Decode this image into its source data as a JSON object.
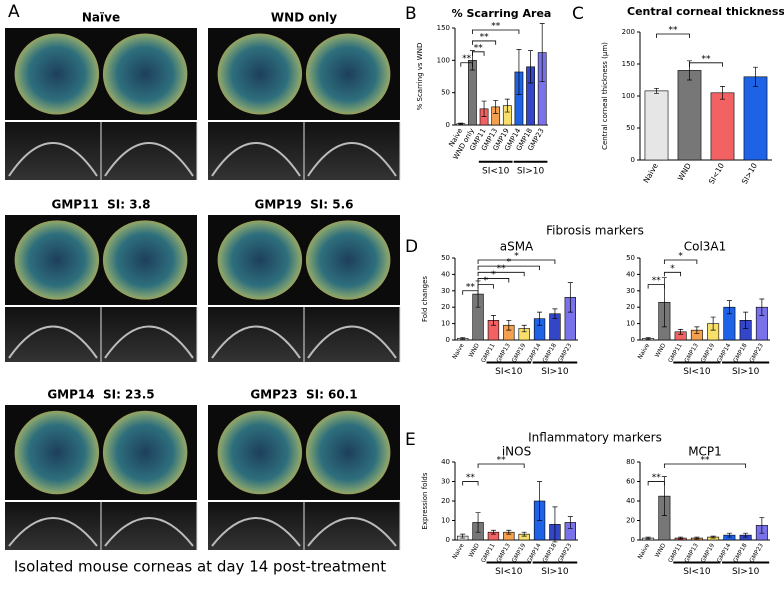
{
  "photos": {
    "panel": "A",
    "images": [
      {
        "label": "Naïve"
      },
      {
        "label": "WND only"
      },
      {
        "label": "GMP11  SI: 3.8"
      },
      {
        "label": "GMP19  SI: 5.6"
      },
      {
        "label": "GMP14  SI: 23.5"
      },
      {
        "label": "GMP23  SI: 60.1"
      }
    ],
    "caption": "Isolated mouse corneas at day 14 post-treatment"
  },
  "group_titles": {
    "D": "Fibrosis markers",
    "E": "Inflammatory markers"
  },
  "chart_data": [
    {
      "type": "bar",
      "panel": "B",
      "title": "% Scarring Area",
      "y_label": "% Scarring vs WND",
      "categories": [
        "Naive",
        "WND only",
        "GMP11",
        "GMP13",
        "GMP19",
        "GMP14",
        "GMP18",
        "GMP23"
      ],
      "values": [
        2,
        100,
        25,
        28,
        30,
        82,
        90,
        112
      ],
      "errors": [
        1,
        15,
        12,
        10,
        10,
        35,
        25,
        45
      ],
      "colors": [
        "#e6e6e6",
        "#777777",
        "#f26262",
        "#f5a04e",
        "#f7df6a",
        "#1e63e6",
        "#3446c8",
        "#7a72ea"
      ],
      "ylim": [
        0,
        150
      ],
      "yticks": [
        0,
        50,
        100,
        150
      ],
      "groups": [
        {
          "label": "SI<10",
          "members": [
            "GMP11",
            "GMP13",
            "GMP19"
          ]
        },
        {
          "label": "SI>10",
          "members": [
            "GMP14",
            "GMP18",
            "GMP23"
          ]
        }
      ],
      "annotations": [
        {
          "text": "**",
          "from": "WND only",
          "to": "GMP14"
        },
        {
          "text": "**",
          "from": "WND only",
          "to": "GMP13"
        },
        {
          "text": "**",
          "from": "WND only",
          "to": "GMP11"
        },
        {
          "text": "**",
          "from": "Naive",
          "to": "WND only"
        }
      ]
    },
    {
      "type": "bar",
      "panel": "C",
      "title": "Central corneal thickness",
      "y_label": "Central corneal thickness (μm)",
      "categories": [
        "Naive",
        "WND",
        "SI<10",
        "SI>10"
      ],
      "values": [
        108,
        140,
        105,
        130
      ],
      "errors": [
        4,
        15,
        10,
        15
      ],
      "colors": [
        "#e6e6e6",
        "#777777",
        "#f26262",
        "#1e63e6"
      ],
      "ylim": [
        0,
        200
      ],
      "yticks": [
        0,
        50,
        100,
        150,
        200
      ],
      "annotations": [
        {
          "text": "**",
          "from": "Naive",
          "to": "WND"
        },
        {
          "text": "**",
          "from": "WND",
          "to": "SI<10"
        }
      ]
    },
    {
      "type": "bar",
      "panel": "D",
      "title": "aSMA",
      "y_label": "Fold changes",
      "categories": [
        "Naive",
        "WND",
        "GMP11",
        "GMP13",
        "GMP19",
        "GMP14",
        "GMP18",
        "GMP23"
      ],
      "values": [
        1,
        28,
        12,
        9,
        7,
        13,
        16,
        26
      ],
      "errors": [
        0.5,
        8,
        3,
        3,
        2,
        4,
        3,
        9
      ],
      "colors": [
        "#e6e6e6",
        "#777777",
        "#f26262",
        "#f5a04e",
        "#f7df6a",
        "#1e63e6",
        "#3446c8",
        "#7a72ea"
      ],
      "ylim": [
        0,
        50
      ],
      "yticks": [
        0,
        10,
        20,
        30,
        40,
        50
      ],
      "groups": [
        {
          "label": "SI<10",
          "members": [
            "GMP11",
            "GMP13",
            "GMP19"
          ]
        },
        {
          "label": "SI>10",
          "members": [
            "GMP14",
            "GMP18",
            "GMP23"
          ]
        }
      ],
      "annotations": [
        {
          "text": "*",
          "from": "WND",
          "to": "GMP18"
        },
        {
          "text": "*",
          "from": "WND",
          "to": "GMP14"
        },
        {
          "text": "**",
          "from": "WND",
          "to": "GMP19"
        },
        {
          "text": "*",
          "from": "WND",
          "to": "GMP13"
        },
        {
          "text": "*",
          "from": "WND",
          "to": "GMP11"
        },
        {
          "text": "**",
          "from": "Naive",
          "to": "WND"
        }
      ]
    },
    {
      "type": "bar",
      "panel": "",
      "title": "Col3A1",
      "categories": [
        "Naive",
        "WND",
        "GMP11",
        "GMP13",
        "GMP19",
        "GMP14",
        "GMP18",
        "GMP23"
      ],
      "values": [
        1,
        23,
        5,
        6,
        10,
        20,
        12,
        20
      ],
      "errors": [
        0.5,
        15,
        1.5,
        2,
        4,
        4,
        5,
        5
      ],
      "colors": [
        "#e6e6e6",
        "#777777",
        "#f26262",
        "#f5a04e",
        "#f7df6a",
        "#1e63e6",
        "#3446c8",
        "#7a72ea"
      ],
      "ylim": [
        0,
        50
      ],
      "yticks": [
        0,
        10,
        20,
        30,
        40,
        50
      ],
      "groups": [
        {
          "label": "SI<10",
          "members": [
            "GMP11",
            "GMP13",
            "GMP19"
          ]
        },
        {
          "label": "SI>10",
          "members": [
            "GMP14",
            "GMP18",
            "GMP23"
          ]
        }
      ],
      "annotations": [
        {
          "text": "*",
          "from": "WND",
          "to": "GMP13"
        },
        {
          "text": "*",
          "from": "WND",
          "to": "GMP11"
        },
        {
          "text": "**",
          "from": "Naive",
          "to": "WND"
        }
      ]
    },
    {
      "type": "bar",
      "panel": "E",
      "title": "iNOS",
      "y_label": "Expression folds",
      "categories": [
        "Naive",
        "WND",
        "GMP11",
        "GMP13",
        "GMP19",
        "GMP14",
        "GMP18",
        "GMP23"
      ],
      "values": [
        2,
        9,
        4,
        4,
        3,
        20,
        8,
        9
      ],
      "errors": [
        1,
        5,
        1,
        1,
        1,
        10,
        9,
        3
      ],
      "colors": [
        "#e6e6e6",
        "#777777",
        "#f26262",
        "#f5a04e",
        "#f7df6a",
        "#1e63e6",
        "#3446c8",
        "#7a72ea"
      ],
      "ylim": [
        0,
        40
      ],
      "yticks": [
        0,
        10,
        20,
        30,
        40
      ],
      "groups": [
        {
          "label": "SI<10",
          "members": [
            "GMP11",
            "GMP13",
            "GMP19"
          ]
        },
        {
          "label": "SI>10",
          "members": [
            "GMP14",
            "GMP18",
            "GMP23"
          ]
        }
      ],
      "annotations": [
        {
          "text": "**",
          "from": "WND",
          "to": "GMP19"
        },
        {
          "text": "**",
          "from": "Naive",
          "to": "WND"
        }
      ]
    },
    {
      "type": "bar",
      "panel": "",
      "title": "MCP1",
      "categories": [
        "Naive",
        "WND",
        "GMP11",
        "GMP13",
        "GMP19",
        "GMP14",
        "GMP18",
        "GMP23"
      ],
      "values": [
        2,
        45,
        2,
        2,
        3,
        5,
        5,
        15
      ],
      "errors": [
        1,
        20,
        1,
        1,
        1,
        2,
        2,
        8
      ],
      "colors": [
        "#e6e6e6",
        "#777777",
        "#f26262",
        "#f5a04e",
        "#f7df6a",
        "#1e63e6",
        "#3446c8",
        "#7a72ea"
      ],
      "ylim": [
        0,
        80
      ],
      "yticks": [
        0,
        20,
        40,
        60,
        80
      ],
      "groups": [
        {
          "label": "SI<10",
          "members": [
            "GMP11",
            "GMP13",
            "GMP19"
          ]
        },
        {
          "label": "SI>10",
          "members": [
            "GMP14",
            "GMP18",
            "GMP23"
          ]
        }
      ],
      "annotations": [
        {
          "text": "**",
          "from": "WND",
          "to": "GMP18"
        },
        {
          "text": "**",
          "from": "Naive",
          "to": "WND"
        }
      ]
    }
  ]
}
